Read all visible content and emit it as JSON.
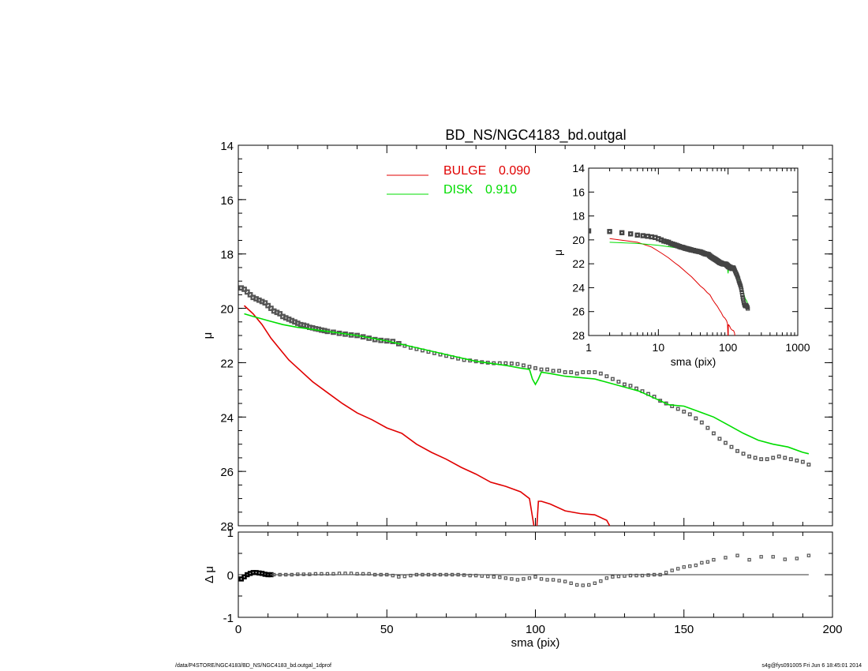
{
  "chart_data": [
    {
      "type": "scatter",
      "title": "BD_NS/NGC4183_bd.outgal",
      "xlabel": "",
      "ylabel": "μ",
      "xlim": [
        0,
        200
      ],
      "ylim": [
        28,
        14
      ],
      "y_inverted": true,
      "yticks": [
        14,
        16,
        18,
        20,
        22,
        24,
        26,
        28
      ],
      "legend_position": "top-center",
      "legend": [
        {
          "label": "BULGE",
          "value": "0.090",
          "color": "#e00000"
        },
        {
          "label": "DISK",
          "value": "0.910",
          "color": "#00dd00"
        }
      ],
      "series": [
        {
          "name": "data",
          "style": "open-squares",
          "color": "#555555",
          "x": [
            1,
            2,
            3,
            4,
            5,
            6,
            7,
            8,
            9,
            10,
            11,
            12,
            13,
            14,
            15,
            16,
            17,
            18,
            19,
            20,
            21,
            22,
            23,
            24,
            25,
            26,
            27,
            28,
            29,
            30,
            32,
            34,
            36,
            38,
            40,
            42,
            44,
            46,
            48,
            50,
            52,
            54,
            56,
            58,
            60,
            62,
            64,
            66,
            68,
            70,
            72,
            74,
            76,
            78,
            80,
            82,
            84,
            86,
            88,
            90,
            92,
            94,
            96,
            98,
            100,
            102,
            104,
            106,
            108,
            110,
            112,
            114,
            116,
            118,
            120,
            122,
            124,
            126,
            128,
            130,
            132,
            134,
            136,
            138,
            140,
            142,
            144,
            146,
            148,
            150,
            152,
            154,
            156,
            158,
            160,
            162,
            164,
            166,
            168,
            170,
            172,
            174,
            176,
            178,
            180,
            182,
            184,
            186,
            188,
            190,
            192
          ],
          "y": [
            19.25,
            19.3,
            19.4,
            19.5,
            19.6,
            19.65,
            19.7,
            19.75,
            19.8,
            19.9,
            20.0,
            20.1,
            20.15,
            20.2,
            20.3,
            20.35,
            20.4,
            20.45,
            20.5,
            20.55,
            20.6,
            20.62,
            20.65,
            20.7,
            20.72,
            20.75,
            20.77,
            20.8,
            20.82,
            20.85,
            20.88,
            20.92,
            20.95,
            20.98,
            21.0,
            21.05,
            21.1,
            21.15,
            21.18,
            21.2,
            21.22,
            21.3,
            21.38,
            21.45,
            21.5,
            21.55,
            21.6,
            21.65,
            21.7,
            21.75,
            21.8,
            21.85,
            21.9,
            21.92,
            21.95,
            21.98,
            22.0,
            22.02,
            22.02,
            22.02,
            22.03,
            22.05,
            22.1,
            22.15,
            22.2,
            22.25,
            22.25,
            22.3,
            22.3,
            22.35,
            22.35,
            22.4,
            22.35,
            22.35,
            22.35,
            22.4,
            22.5,
            22.6,
            22.7,
            22.8,
            22.85,
            22.95,
            23.05,
            23.15,
            23.25,
            23.4,
            23.5,
            23.6,
            23.7,
            23.8,
            23.9,
            24.05,
            24.2,
            24.4,
            24.6,
            24.8,
            24.95,
            25.1,
            25.25,
            25.35,
            25.45,
            25.5,
            25.55,
            25.55,
            25.5,
            25.45,
            25.5,
            25.55,
            25.6,
            25.65,
            25.75
          ]
        },
        {
          "name": "BULGE",
          "style": "line",
          "color": "#e00000",
          "x": [
            2,
            5,
            8,
            11,
            14,
            17,
            20,
            25,
            30,
            35,
            40,
            45,
            50,
            55,
            60,
            65,
            70,
            75,
            80,
            85,
            90,
            95,
            98,
            99.5,
            100,
            100.5,
            101,
            102,
            105,
            110,
            115,
            120,
            124,
            125
          ],
          "y": [
            19.9,
            20.2,
            20.6,
            21.1,
            21.5,
            21.9,
            22.2,
            22.7,
            23.1,
            23.5,
            23.85,
            24.1,
            24.4,
            24.6,
            25.0,
            25.3,
            25.55,
            25.85,
            26.1,
            26.4,
            26.55,
            26.75,
            27.0,
            28.0,
            29.0,
            28.0,
            27.1,
            27.1,
            27.2,
            27.45,
            27.55,
            27.6,
            27.8,
            28.0
          ]
        },
        {
          "name": "DISK",
          "style": "line",
          "color": "#00dd00",
          "x": [
            2,
            5,
            10,
            15,
            20,
            30,
            40,
            50,
            60,
            70,
            80,
            90,
            95,
            98,
            99,
            100,
            101,
            102,
            105,
            110,
            120,
            130,
            135,
            140,
            145,
            150,
            155,
            160,
            165,
            170,
            175,
            180,
            185,
            190,
            192
          ],
          "y": [
            20.2,
            20.3,
            20.45,
            20.6,
            20.7,
            20.85,
            21.0,
            21.2,
            21.45,
            21.7,
            21.95,
            22.1,
            22.2,
            22.25,
            22.6,
            22.8,
            22.6,
            22.35,
            22.4,
            22.5,
            22.6,
            22.9,
            23.05,
            23.3,
            23.55,
            23.6,
            23.8,
            24.0,
            24.3,
            24.6,
            24.85,
            25.0,
            25.1,
            25.3,
            25.35
          ]
        }
      ]
    },
    {
      "type": "scatter",
      "title": "",
      "xlabel": "sma (pix)",
      "ylabel": "Δ μ",
      "xlim": [
        0,
        200
      ],
      "ylim": [
        -1,
        1
      ],
      "xticks": [
        0,
        50,
        100,
        150,
        200
      ],
      "yticks": [
        -1,
        0,
        1
      ],
      "series": [
        {
          "name": "residual",
          "style": "open-squares",
          "color": "#555555",
          "x": [
            1,
            2,
            3,
            4,
            5,
            6,
            7,
            8,
            9,
            10,
            11,
            12,
            14,
            16,
            18,
            20,
            22,
            24,
            26,
            28,
            30,
            32,
            34,
            36,
            38,
            40,
            42,
            44,
            46,
            48,
            50,
            52,
            54,
            56,
            58,
            60,
            62,
            64,
            66,
            68,
            70,
            72,
            74,
            76,
            78,
            80,
            82,
            84,
            86,
            88,
            90,
            92,
            94,
            96,
            98,
            100,
            102,
            104,
            106,
            108,
            110,
            112,
            114,
            116,
            118,
            120,
            122,
            124,
            126,
            128,
            130,
            132,
            134,
            136,
            138,
            140,
            142,
            144,
            146,
            148,
            150,
            152,
            154,
            156,
            158,
            160,
            164,
            168,
            172,
            176,
            180,
            184,
            188,
            192
          ],
          "y": [
            -0.1,
            -0.05,
            0.0,
            0.03,
            0.05,
            0.05,
            0.04,
            0.03,
            0.01,
            0.0,
            0.0,
            0.0,
            0.0,
            0.0,
            0.0,
            0.01,
            0.01,
            0.01,
            0.02,
            0.02,
            0.02,
            0.02,
            0.03,
            0.03,
            0.03,
            0.02,
            0.02,
            0.02,
            0.0,
            0.0,
            0.0,
            -0.02,
            -0.05,
            -0.04,
            -0.02,
            0.0,
            0.0,
            0.0,
            0.0,
            0.0,
            0.0,
            0.0,
            0.0,
            -0.01,
            -0.02,
            -0.02,
            -0.03,
            -0.04,
            -0.05,
            -0.06,
            -0.08,
            -0.1,
            -0.12,
            -0.1,
            -0.08,
            -0.05,
            -0.1,
            -0.12,
            -0.12,
            -0.14,
            -0.16,
            -0.2,
            -0.24,
            -0.25,
            -0.24,
            -0.2,
            -0.15,
            -0.08,
            -0.05,
            -0.04,
            -0.03,
            -0.02,
            -0.02,
            -0.02,
            -0.01,
            0.0,
            0.0,
            0.05,
            0.1,
            0.14,
            0.18,
            0.2,
            0.22,
            0.28,
            0.3,
            0.35,
            0.4,
            0.45,
            0.35,
            0.42,
            0.42,
            0.36,
            0.38,
            0.45
          ]
        }
      ]
    },
    {
      "type": "scatter",
      "title": "",
      "xlabel": "sma (pix)",
      "ylabel": "μ",
      "x_scale": "log",
      "xlim": [
        1,
        1000
      ],
      "ylim": [
        28,
        14
      ],
      "y_inverted": true,
      "xticks": [
        1,
        10,
        100,
        1000
      ],
      "yticks": [
        14,
        16,
        18,
        20,
        22,
        24,
        26,
        28
      ],
      "tick_labels_x": [
        "1",
        "10",
        "100",
        "1000"
      ],
      "series": [
        {
          "name": "data",
          "style": "open-squares",
          "color": "#555555",
          "ref": 0
        },
        {
          "name": "BULGE",
          "style": "line",
          "color": "#e00000",
          "ref": 1
        },
        {
          "name": "DISK",
          "style": "line",
          "color": "#00dd00",
          "ref": 2
        }
      ]
    }
  ],
  "footer": {
    "left": "/data/P4STORE/NGC4183/BD_NS/NGC4183_bd.outgal_1dprof",
    "right": "s4g@fys091005  Fri Jun  6 18:45:01 2014"
  }
}
